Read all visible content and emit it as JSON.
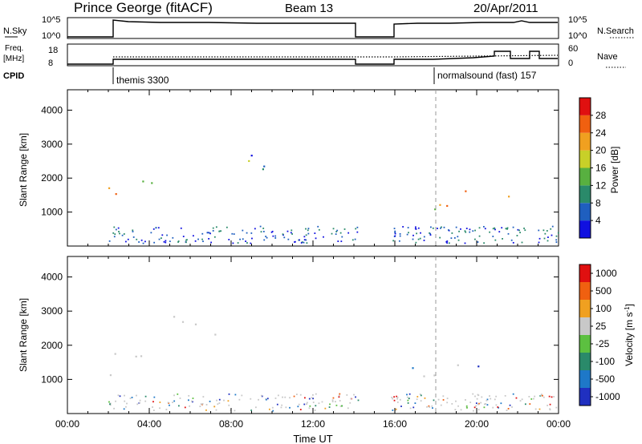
{
  "header": {
    "station": "Prince George (fitACF)",
    "beam": "Beam 13",
    "date": "20/Apr/2011"
  },
  "status": {
    "nsky_label": "N.Sky",
    "nsky_ticks": [
      "10^5",
      "10^0"
    ],
    "nsearch_label": "N.Search",
    "nsearch_ticks": [
      "10^5",
      "10^0"
    ],
    "freq_label": "Freq.",
    "freq_unit": "[MHz]",
    "freq_ticks": [
      "18",
      "8"
    ],
    "nave_label": "Nave",
    "nave_ticks": [
      "60",
      "0"
    ],
    "cpid_label": "CPID",
    "cpid_segments": [
      {
        "start": 2.0,
        "label": "themis 3300"
      },
      {
        "start": 18.0,
        "label": "normalsound (fast) 157"
      }
    ]
  },
  "chart_data": [
    {
      "type": "heatmap",
      "title": "",
      "xlabel": "",
      "ylabel": "Slant Range [km]",
      "xlim": [
        0,
        24
      ],
      "ylim": [
        0,
        4600
      ],
      "yticks": [
        "1000",
        "2000",
        "3000",
        "4000"
      ],
      "colorbar": {
        "label": "Power [dB]",
        "ticks": [
          "4",
          "8",
          "12",
          "16",
          "20",
          "24",
          "28"
        ],
        "colors": [
          "#1010e0",
          "#1f5fbf",
          "#2a8a6a",
          "#58b040",
          "#c8d028",
          "#f0a020",
          "#f06010",
          "#e01010"
        ]
      },
      "data_gaps_hours": [
        [
          0,
          2.0
        ],
        [
          14.2,
          15.8
        ]
      ],
      "scatter_regions": [
        {
          "x": [
            2.0,
            3.6
          ],
          "y": [
            900,
            1800
          ],
          "level": 6
        },
        {
          "x": [
            3.0,
            5.0
          ],
          "y": [
            1400,
            2100
          ],
          "level": 2
        },
        {
          "x": [
            5.0,
            10.6
          ],
          "y": [
            2200,
            2900
          ],
          "level": 2
        },
        {
          "x": [
            15.9,
            22.0
          ],
          "y": [
            1000,
            1700
          ],
          "level": 4
        },
        {
          "x": [
            20.9,
            21.4
          ],
          "y": [
            2000,
            2600
          ],
          "level": 2
        },
        {
          "x": [
            22.5,
            23.0
          ],
          "y": [
            2000,
            2700
          ],
          "level": 2
        }
      ]
    },
    {
      "type": "heatmap",
      "title": "",
      "xlabel": "Time UT",
      "ylabel": "Slant Range [km]",
      "xlim": [
        0,
        24
      ],
      "ylim": [
        0,
        4600
      ],
      "xticks": [
        "00:00",
        "04:00",
        "08:00",
        "12:00",
        "16:00",
        "20:00",
        "00:00"
      ],
      "yticks": [
        "1000",
        "2000",
        "3000",
        "4000"
      ],
      "colorbar": {
        "label": "Velocity [m s^-1]",
        "ticks": [
          "1000",
          "500",
          "100",
          "25",
          "-25",
          "-100",
          "-500",
          "-1000"
        ],
        "colors": [
          "#2030c0",
          "#1e78c8",
          "#2a8a6a",
          "#5cc040",
          "#c8c8c8",
          "#f0a020",
          "#f06010",
          "#e01010"
        ]
      },
      "data_gaps_hours": [
        [
          0,
          2.0
        ],
        [
          14.2,
          15.8
        ]
      ],
      "ground_scatter_color": "#c8c8c8"
    }
  ]
}
